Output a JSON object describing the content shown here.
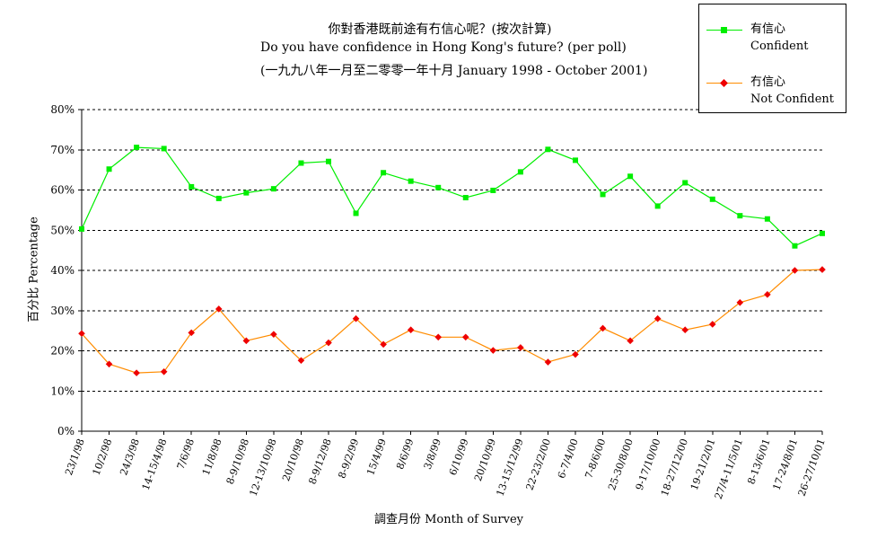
{
  "title": {
    "line1": "你對香港既前途有冇信心呢？(按次計算)",
    "line2": "Do you have confidence in Hong Kong's future? (per poll)",
    "line3": "(一九九八年一月至二零零一年十月 January 1998 - October 2001)"
  },
  "legend": {
    "confident_zh": "有信心",
    "confident_en": "Confident",
    "not_confident_zh": "冇信心",
    "not_confident_en": "Not Confident"
  },
  "chart_data": {
    "type": "line",
    "title": "你對香港既前途有冇信心呢？(按次計算) Do you have confidence in Hong Kong's future? (per poll)",
    "xlabel": "調查月份 Month of Survey",
    "ylabel": "百分比 Percentage",
    "ylim": [
      0,
      80
    ],
    "yticks": [
      "0%",
      "10%",
      "20%",
      "30%",
      "40%",
      "50%",
      "60%",
      "70%",
      "80%"
    ],
    "grid": true,
    "legend_position": "top-right",
    "categories": [
      "23/1/98",
      "10/2/98",
      "24/3/98",
      "14-15/4/98",
      "7/6/98",
      "11/8/98",
      "8-9/10/98",
      "12-13/10/98",
      "20/10/98",
      "8-9/12/98",
      "8-9/2/99",
      "15/4/99",
      "8/6/99",
      "3/8/99",
      "6/10/99",
      "20/10/99",
      "13-15/12/99",
      "22-23/2/00",
      "6-7/4/00",
      "7-8/6/00",
      "25-30/8/00",
      "9-17/10/00",
      "18-27/12/00",
      "19-21/2/01",
      "27/4-11/5/01",
      "8-13/6/01",
      "17-24/8/01",
      "26-27/10/01"
    ],
    "series": [
      {
        "name": "有信心 Confident",
        "color": "#00ee00",
        "values": [
          50.3,
          65.2,
          70.6,
          70.3,
          60.8,
          57.9,
          59.3,
          60.3,
          66.7,
          67.1,
          54.2,
          64.3,
          62.2,
          60.6,
          58.1,
          59.9,
          64.5,
          70.1,
          67.4,
          58.9,
          63.4,
          56.0,
          61.8,
          57.7,
          53.6,
          52.8,
          46.1,
          49.2
        ]
      },
      {
        "name": "冇信心 Not Confident",
        "color": "#ff8c00",
        "marker_color": "#ee0000",
        "values": [
          24.3,
          16.7,
          14.5,
          14.8,
          24.5,
          30.4,
          22.5,
          24.1,
          17.6,
          22.0,
          28.0,
          21.6,
          25.2,
          23.4,
          23.4,
          20.1,
          20.8,
          17.2,
          19.1,
          25.6,
          22.5,
          28.0,
          25.2,
          26.6,
          32.0,
          34.0,
          40.0,
          40.2
        ]
      }
    ]
  }
}
